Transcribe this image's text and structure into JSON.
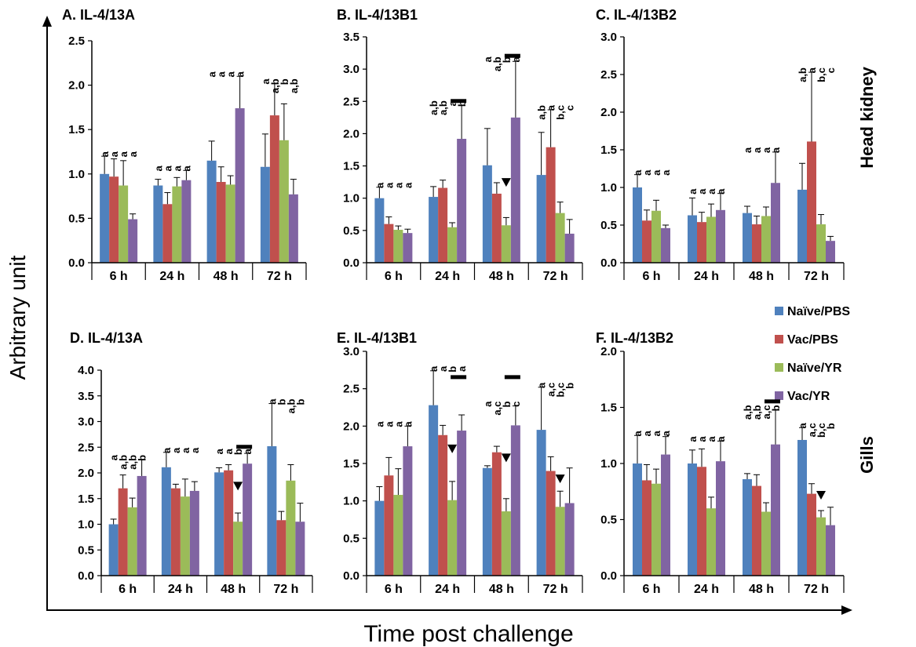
{
  "axis_titles": {
    "y": "Arbitrary unit",
    "x": "Time post challenge"
  },
  "row_labels": [
    "Head kidney",
    "Gills"
  ],
  "legend": [
    {
      "label": "Naïve/PBS",
      "color": "#4f81bd"
    },
    {
      "label": "Vac/PBS",
      "color": "#c0504d"
    },
    {
      "label": "Naïve/YR",
      "color": "#9bbb59"
    },
    {
      "label": "Vac/YR",
      "color": "#8064a2"
    }
  ],
  "chart_data": [
    {
      "type": "bar",
      "title": "A. IL-4/13A",
      "tissue": "Head kidney",
      "categories": [
        "6 h",
        "24 h",
        "48 h",
        "72 h"
      ],
      "ylim": [
        0,
        2.5
      ],
      "yticks": [
        "0.0",
        "0.5",
        "1.0",
        "1.5",
        "2.0",
        "2.5"
      ],
      "series": [
        {
          "name": "Naïve/PBS",
          "values": [
            1.0,
            0.87,
            1.15,
            1.08
          ],
          "errors": [
            0.2,
            0.07,
            0.22,
            0.37
          ]
        },
        {
          "name": "Vac/PBS",
          "values": [
            0.97,
            0.66,
            0.91,
            1.66
          ],
          "errors": [
            0.2,
            0.13,
            0.17,
            0.36
          ]
        },
        {
          "name": "Naïve/YR",
          "values": [
            0.87,
            0.86,
            0.88,
            1.38
          ],
          "errors": [
            0.28,
            0.1,
            0.1,
            0.41
          ]
        },
        {
          "name": "Vac/YR",
          "values": [
            0.49,
            0.93,
            1.74,
            0.77
          ],
          "errors": [
            0.06,
            0.11,
            0.36,
            0.17
          ]
        }
      ],
      "letters": [
        [
          "a",
          "a",
          "a",
          "a"
        ],
        [
          "a",
          "a",
          "a",
          "a"
        ],
        [
          "a",
          "a",
          "a",
          "a"
        ],
        [
          "a",
          "a,b",
          "b",
          "a,b"
        ]
      ],
      "bars": [],
      "arrows": []
    },
    {
      "type": "bar",
      "title": "B. IL-4/13B1",
      "tissue": "Head kidney",
      "categories": [
        "6 h",
        "24 h",
        "48 h",
        "72 h"
      ],
      "ylim": [
        0,
        3.5
      ],
      "yticks": [
        "0.0",
        "0.5",
        "1.0",
        "1.5",
        "2.0",
        "2.5",
        "3.0",
        "3.5"
      ],
      "series": [
        {
          "name": "Naïve/PBS",
          "values": [
            1.0,
            1.02,
            1.51,
            1.36
          ],
          "errors": [
            0.17,
            0.16,
            0.57,
            0.66
          ]
        },
        {
          "name": "Vac/PBS",
          "values": [
            0.6,
            1.16,
            1.07,
            1.79
          ],
          "errors": [
            0.11,
            0.12,
            0.17,
            0.58
          ]
        },
        {
          "name": "Naïve/YR",
          "values": [
            0.51,
            0.55,
            0.58,
            0.77
          ],
          "errors": [
            0.06,
            0.07,
            0.12,
            0.17
          ]
        },
        {
          "name": "Vac/YR",
          "values": [
            0.46,
            1.92,
            2.25,
            0.45
          ],
          "errors": [
            0.06,
            0.52,
            0.87,
            0.22
          ]
        }
      ],
      "letters": [
        [
          "a",
          "a",
          "a",
          "a"
        ],
        [
          "a,b",
          "a,b",
          "a",
          "b"
        ],
        [
          "a",
          "a,b",
          "b",
          "a"
        ],
        [
          "a,b",
          "a",
          "b,c",
          "c"
        ]
      ],
      "bars": [
        [
          1,
          2.5
        ],
        [
          2,
          3.2
        ]
      ],
      "arrows": [
        [
          2,
          1.25
        ]
      ]
    },
    {
      "type": "bar",
      "title": "C. IL-4/13B2",
      "tissue": "Head kidney",
      "categories": [
        "6 h",
        "24 h",
        "48 h",
        "72 h"
      ],
      "ylim": [
        0,
        3.0
      ],
      "yticks": [
        "0.0",
        "0.5",
        "1.0",
        "1.5",
        "2.0",
        "2.5",
        "3.0"
      ],
      "series": [
        {
          "name": "Naïve/PBS",
          "values": [
            1.0,
            0.63,
            0.66,
            0.97
          ],
          "errors": [
            0.17,
            0.23,
            0.09,
            0.35
          ]
        },
        {
          "name": "Vac/PBS",
          "values": [
            0.56,
            0.54,
            0.51,
            1.61
          ],
          "errors": [
            0.14,
            0.13,
            0.11,
            0.92
          ]
        },
        {
          "name": "Naïve/YR",
          "values": [
            0.69,
            0.61,
            0.62,
            0.51
          ],
          "errors": [
            0.14,
            0.17,
            0.12,
            0.13
          ]
        },
        {
          "name": "Vac/YR",
          "values": [
            0.46,
            0.7,
            1.06,
            0.29
          ],
          "errors": [
            0.04,
            0.22,
            0.41,
            0.06
          ]
        }
      ],
      "letters": [
        [
          "a",
          "a",
          "a",
          "a"
        ],
        [
          "a",
          "a",
          "a",
          "a"
        ],
        [
          "a",
          "a",
          "a",
          "a"
        ],
        [
          "a,b",
          "a",
          "b,c",
          "c"
        ]
      ],
      "bars": [],
      "arrows": []
    },
    {
      "type": "bar",
      "title": "D. IL-4/13A",
      "tissue": "Gills",
      "categories": [
        "6 h",
        "24 h",
        "48 h",
        "72 h"
      ],
      "ylim": [
        0,
        4.0
      ],
      "yticks": [
        "0.0",
        "0.5",
        "1.0",
        "1.5",
        "2.0",
        "2.5",
        "3.0",
        "3.5",
        "4.0"
      ],
      "series": [
        {
          "name": "Naïve/PBS",
          "values": [
            1.0,
            2.11,
            2.01,
            2.52
          ],
          "errors": [
            0.1,
            0.29,
            0.09,
            0.83
          ]
        },
        {
          "name": "Vac/PBS",
          "values": [
            1.7,
            1.7,
            2.05,
            1.08
          ],
          "errors": [
            0.26,
            0.08,
            0.11,
            0.17
          ]
        },
        {
          "name": "Naïve/YR",
          "values": [
            1.33,
            1.54,
            1.05,
            1.85
          ],
          "errors": [
            0.18,
            0.34,
            0.17,
            0.31
          ]
        },
        {
          "name": "Vac/YR",
          "values": [
            1.94,
            1.65,
            2.18,
            1.05
          ],
          "errors": [
            0.32,
            0.18,
            0.2,
            0.36
          ]
        }
      ],
      "letters": [
        [
          "a",
          "a,b",
          "a,b",
          "b"
        ],
        [
          "a",
          "a",
          "a",
          "a"
        ],
        [
          "a",
          "a",
          "b",
          "a"
        ],
        [
          "a",
          "b",
          "a,b",
          "b"
        ]
      ],
      "bars": [
        [
          2,
          2.5
        ]
      ],
      "arrows": [
        [
          2,
          1.75
        ]
      ]
    },
    {
      "type": "bar",
      "title": "E. IL-4/13B1",
      "tissue": "Gills",
      "categories": [
        "6 h",
        "24 h",
        "48 h",
        "72 h"
      ],
      "ylim": [
        0,
        3.0
      ],
      "yticks": [
        "0.0",
        "0.5",
        "1.0",
        "1.5",
        "2.0",
        "2.5",
        "3.0"
      ],
      "series": [
        {
          "name": "Naïve/PBS",
          "values": [
            1.0,
            2.28,
            1.44,
            1.95
          ],
          "errors": [
            0.19,
            0.46,
            0.03,
            0.57
          ]
        },
        {
          "name": "Vac/PBS",
          "values": [
            1.34,
            1.88,
            1.65,
            1.4
          ],
          "errors": [
            0.24,
            0.13,
            0.08,
            0.19
          ]
        },
        {
          "name": "Naïve/YR",
          "values": [
            1.08,
            1.01,
            0.86,
            0.92
          ],
          "errors": [
            0.35,
            0.25,
            0.17,
            0.21
          ]
        },
        {
          "name": "Vac/YR",
          "values": [
            1.73,
            1.94,
            2.01,
            0.97
          ],
          "errors": [
            0.27,
            0.21,
            0.26,
            0.47
          ]
        }
      ],
      "letters": [
        [
          "a",
          "a",
          "a",
          "a"
        ],
        [
          "a",
          "a",
          "b",
          "a"
        ],
        [
          "a",
          "a,c",
          "b",
          "c"
        ],
        [
          "a",
          "a,c",
          "b,c",
          "b"
        ]
      ],
      "bars": [
        [
          1,
          2.65
        ],
        [
          2,
          2.65
        ]
      ],
      "arrows": [
        [
          1,
          1.7
        ],
        [
          2,
          1.58
        ],
        [
          3,
          1.3
        ]
      ]
    },
    {
      "type": "bar",
      "title": "F. IL-4/13B2",
      "tissue": "Gills",
      "categories": [
        "6 h",
        "24 h",
        "48 h",
        "72 h"
      ],
      "ylim": [
        0,
        2.0
      ],
      "yticks": [
        "0.0",
        "0.5",
        "1.0",
        "1.5",
        "2.0"
      ],
      "series": [
        {
          "name": "Naïve/PBS",
          "values": [
            1.0,
            1.0,
            0.86,
            1.21
          ],
          "errors": [
            0.25,
            0.12,
            0.05,
            0.11
          ]
        },
        {
          "name": "Vac/PBS",
          "values": [
            0.85,
            0.97,
            0.8,
            0.73
          ],
          "errors": [
            0.14,
            0.16,
            0.1,
            0.09
          ]
        },
        {
          "name": "Naïve/YR",
          "values": [
            0.82,
            0.6,
            0.57,
            0.52
          ],
          "errors": [
            0.13,
            0.1,
            0.08,
            0.06
          ]
        },
        {
          "name": "Vac/YR",
          "values": [
            1.08,
            1.02,
            1.17,
            0.45
          ],
          "errors": [
            0.16,
            0.18,
            0.31,
            0.16
          ]
        }
      ],
      "letters": [
        [
          "a",
          "a",
          "a",
          "a"
        ],
        [
          "a",
          "a",
          "a",
          "a"
        ],
        [
          "a,b",
          "a,b",
          "a,c",
          "b"
        ],
        [
          "a",
          "a,c",
          "b,c",
          "b"
        ]
      ],
      "bars": [
        [
          2,
          1.55
        ]
      ],
      "arrows": [
        [
          3,
          0.72
        ]
      ]
    }
  ]
}
